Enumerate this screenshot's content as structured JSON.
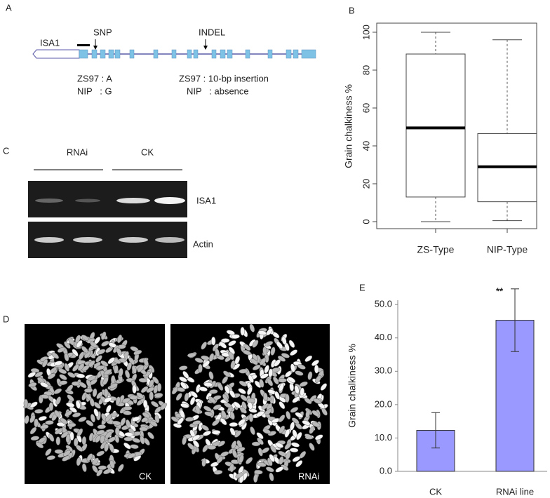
{
  "panel_labels": [
    "A",
    "B",
    "C",
    "D",
    "E"
  ],
  "gene_model": {
    "gene": "ISA1",
    "snp": "SNP",
    "indel": "INDEL",
    "snp_alleles": [
      "ZS97 : A",
      "NIP   : G"
    ],
    "indel_alleles": [
      "ZS97 : 10-bp insertion",
      "NIP   : absence"
    ]
  },
  "gel": {
    "groups": [
      "RNAi",
      "CK"
    ],
    "bands": [
      "ISA1",
      "Actin"
    ]
  },
  "grains": {
    "labels": [
      "CK",
      "RNAi"
    ]
  },
  "chart_data": [
    {
      "type": "box",
      "ylabel": "Grain chalkiness %",
      "categories": [
        "ZS-Type",
        "NIP-Type"
      ],
      "boxes": [
        {
          "min": 0,
          "q1": 13,
          "median": 49.5,
          "q3": 88.5,
          "max": 100
        },
        {
          "min": 0.5,
          "q1": 10.5,
          "median": 29,
          "q3": 46.5,
          "max": 96
        }
      ],
      "ylim": [
        -3.7,
        104.8
      ],
      "yticks": [
        0,
        20,
        40,
        60,
        80,
        100
      ]
    },
    {
      "type": "bar",
      "ylabel": "Grain chalkiness %",
      "categories": [
        "CK",
        "RNAi line"
      ],
      "values": [
        12.3,
        45.3
      ],
      "errors": [
        5.3,
        9.4
      ],
      "color": "#9999ff",
      "annotation": "**",
      "ylim": [
        0,
        51.3
      ],
      "yticks": [
        {
          "value": 0,
          "label": "0.0"
        },
        {
          "value": 10,
          "label": "10.0"
        },
        {
          "value": 20,
          "label": "20.0"
        },
        {
          "value": 30,
          "label": "30.0"
        },
        {
          "value": 40,
          "label": "40.0"
        },
        {
          "value": 50,
          "label": "50.0"
        }
      ]
    }
  ]
}
